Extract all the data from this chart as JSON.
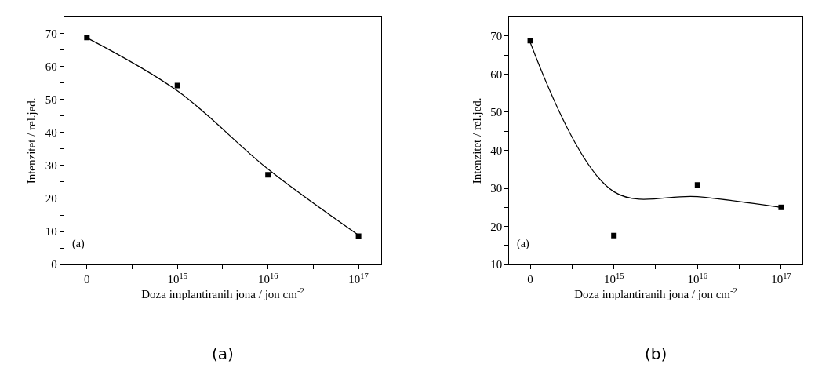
{
  "chart_data": [
    {
      "type": "scatter",
      "xlabel": "Doza implantiranih jona / jon cm$^{-2}$",
      "ylabel": "Intenzitet / rel.jed.",
      "annotations": [
        "(a)",
        "(a)"
      ],
      "categories": [
        "0",
        "10$^{15}$",
        "10$^{16}$",
        "10$^{17}$"
      ],
      "ylim": [
        0,
        75
      ],
      "yticks": [
        0,
        {
          "value": 5,
          "label": null
        },
        10,
        {
          "value": 15,
          "label": null
        },
        20,
        {
          "value": 25,
          "label": null
        },
        30,
        {
          "value": 35,
          "label": null
        },
        40,
        {
          "value": 45,
          "label": null
        },
        50,
        {
          "value": 55,
          "label": null
        },
        60,
        {
          "value": 65,
          "label": null
        },
        70
      ],
      "series": [
        {
          "marker": "square",
          "color": "#000000",
          "values": [
            68.8,
            54.2,
            27.2,
            8.6
          ]
        },
        {
          "type": "line",
          "marker": "none",
          "line_style": "solid",
          "color": "#000000",
          "values": [
            68.7,
            52.6,
            28.9,
            8.9
          ]
        }
      ]
    },
    {
      "type": "scatter",
      "xlabel": "Doza implantiranih jona / jon cm$^{-2}$",
      "ylabel": "Intenzitet / rel.jed.",
      "annotations": [
        "(a)",
        "(b)"
      ],
      "categories": [
        "0",
        "10$^{15}$",
        "10$^{16}$",
        "10$^{17}$"
      ],
      "ylim": [
        10,
        75
      ],
      "yticks": [
        10,
        {
          "value": 15,
          "label": null
        },
        20,
        {
          "value": 25,
          "label": null
        },
        30,
        {
          "value": 35,
          "label": null
        },
        40,
        {
          "value": 45,
          "label": null
        },
        50,
        {
          "value": 55,
          "label": null
        },
        60,
        {
          "value": 65,
          "label": null
        },
        70
      ],
      "series": [
        {
          "marker": "square",
          "color": "#000000",
          "values": [
            68.8,
            17.6,
            30.9,
            25.0
          ]
        },
        {
          "type": "line",
          "marker": "none",
          "line_style": "solid",
          "color": "#000000",
          "values": [
            68.3,
            29.1,
            27.8,
            25.0
          ]
        }
      ]
    }
  ]
}
